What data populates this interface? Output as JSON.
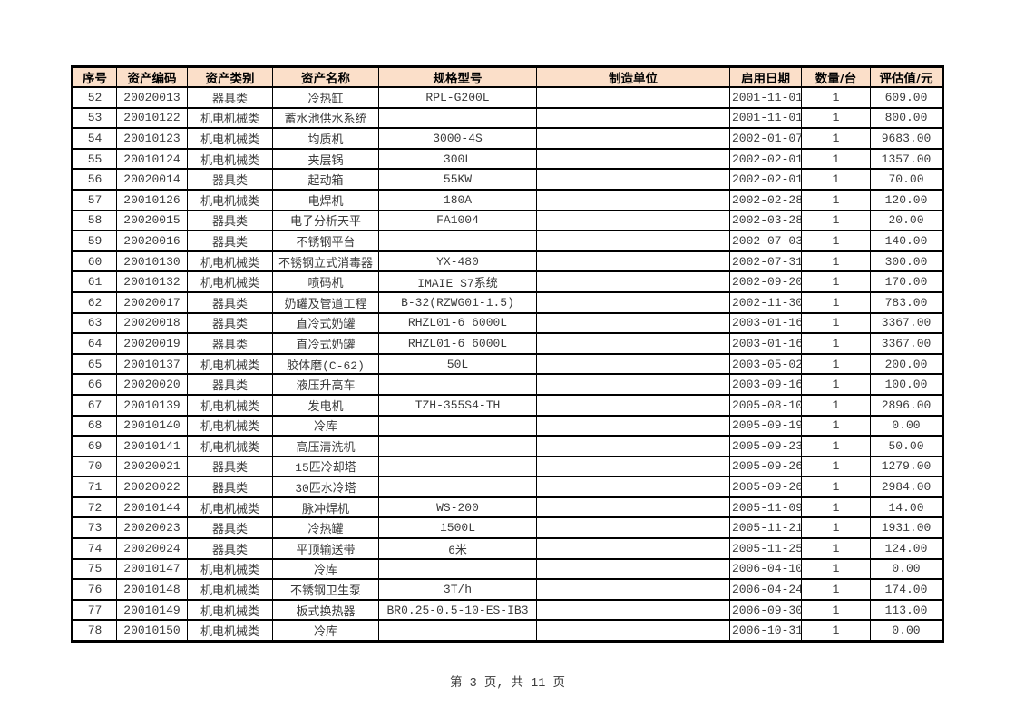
{
  "colors": {
    "header_bg": "#FBDFC9",
    "border": "#000000",
    "cell_text": "#3a3a3a",
    "header_text": "#000000"
  },
  "footer": {
    "text": "第 3 页, 共 11 页"
  },
  "table": {
    "headers": [
      "序号",
      "资产编码",
      "资产类别",
      "资产名称",
      "规格型号",
      "制造单位",
      "启用日期",
      "数量/台",
      "评估值/元"
    ],
    "column_keys": [
      "index",
      "asset-code",
      "asset-category",
      "asset-name",
      "spec-model",
      "manufacturer",
      "start-date",
      "quantity",
      "assessed-value"
    ],
    "rows": [
      [
        "52",
        "20020013",
        "器具类",
        "冷热缸",
        "RPL-G200L",
        "",
        "2001-11-01",
        "1",
        "609.00"
      ],
      [
        "53",
        "20010122",
        "机电机械类",
        "蓄水池供水系统",
        "",
        "",
        "2001-11-01",
        "1",
        "800.00"
      ],
      [
        "54",
        "20010123",
        "机电机械类",
        "均质机",
        "3000-4S",
        "",
        "2002-01-07",
        "1",
        "9683.00"
      ],
      [
        "55",
        "20010124",
        "机电机械类",
        "夹层锅",
        "300L",
        "",
        "2002-02-01",
        "1",
        "1357.00"
      ],
      [
        "56",
        "20020014",
        "器具类",
        "起动箱",
        "55KW",
        "",
        "2002-02-01",
        "1",
        "70.00"
      ],
      [
        "57",
        "20010126",
        "机电机械类",
        "电焊机",
        "180A",
        "",
        "2002-02-28",
        "1",
        "120.00"
      ],
      [
        "58",
        "20020015",
        "器具类",
        "电子分析天平",
        "FA1004",
        "",
        "2002-03-28",
        "1",
        "20.00"
      ],
      [
        "59",
        "20020016",
        "器具类",
        "不锈钢平台",
        "",
        "",
        "2002-07-03",
        "1",
        "140.00"
      ],
      [
        "60",
        "20010130",
        "机电机械类",
        "不锈钢立式消毒器",
        "YX-480",
        "",
        "2002-07-31",
        "1",
        "300.00"
      ],
      [
        "61",
        "20010132",
        "机电机械类",
        "喷码机",
        "IMAIE S7系统",
        "",
        "2002-09-20",
        "1",
        "170.00"
      ],
      [
        "62",
        "20020017",
        "器具类",
        "奶罐及管道工程",
        "B-32(RZWG01-1.5)",
        "",
        "2002-11-30",
        "1",
        "783.00"
      ],
      [
        "63",
        "20020018",
        "器具类",
        "直冷式奶罐",
        "RHZL01-6 6000L",
        "",
        "2003-01-16",
        "1",
        "3367.00"
      ],
      [
        "64",
        "20020019",
        "器具类",
        "直冷式奶罐",
        "RHZL01-6 6000L",
        "",
        "2003-01-16",
        "1",
        "3367.00"
      ],
      [
        "65",
        "20010137",
        "机电机械类",
        "胶体磨(C-62)",
        "50L",
        "",
        "2003-05-02",
        "1",
        "200.00"
      ],
      [
        "66",
        "20020020",
        "器具类",
        "液压升高车",
        "",
        "",
        "2003-09-16",
        "1",
        "100.00"
      ],
      [
        "67",
        "20010139",
        "机电机械类",
        "发电机",
        "TZH-355S4-TH",
        "",
        "2005-08-10",
        "1",
        "2896.00"
      ],
      [
        "68",
        "20010140",
        "机电机械类",
        "冷库",
        "",
        "",
        "2005-09-19",
        "1",
        "0.00"
      ],
      [
        "69",
        "20010141",
        "机电机械类",
        "高压清洗机",
        "",
        "",
        "2005-09-23",
        "1",
        "50.00"
      ],
      [
        "70",
        "20020021",
        "器具类",
        "15匹冷却塔",
        "",
        "",
        "2005-09-26",
        "1",
        "1279.00"
      ],
      [
        "71",
        "20020022",
        "器具类",
        "30匹水冷塔",
        "",
        "",
        "2005-09-26",
        "1",
        "2984.00"
      ],
      [
        "72",
        "20010144",
        "机电机械类",
        "脉冲焊机",
        "WS-200",
        "",
        "2005-11-09",
        "1",
        "14.00"
      ],
      [
        "73",
        "20020023",
        "器具类",
        "冷热罐",
        "1500L",
        "",
        "2005-11-21",
        "1",
        "1931.00"
      ],
      [
        "74",
        "20020024",
        "器具类",
        "平顶输送带",
        "6米",
        "",
        "2005-11-25",
        "1",
        "124.00"
      ],
      [
        "75",
        "20010147",
        "机电机械类",
        "冷库",
        "",
        "",
        "2006-04-10",
        "1",
        "0.00"
      ],
      [
        "76",
        "20010148",
        "机电机械类",
        "不锈钢卫生泵",
        "3T/h",
        "",
        "2006-04-24",
        "1",
        "174.00"
      ],
      [
        "77",
        "20010149",
        "机电机械类",
        "板式换热器",
        "BR0.25-0.5-10-ES-IB3",
        "",
        "2006-09-30",
        "1",
        "113.00"
      ],
      [
        "78",
        "20010150",
        "机电机械类",
        "冷库",
        "",
        "",
        "2006-10-31",
        "1",
        "0.00"
      ]
    ]
  }
}
